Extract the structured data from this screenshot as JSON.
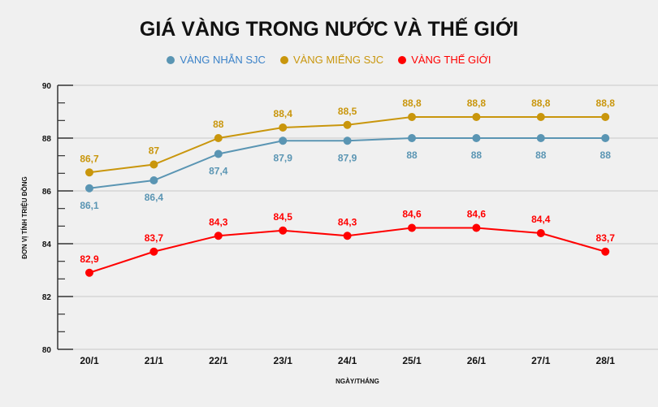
{
  "chart_data": {
    "type": "line",
    "title": "GIÁ VÀNG TRONG NƯỚC VÀ THẾ GIỚI",
    "xlabel": "NGÀY/THÁNG",
    "ylabel": "ĐƠN VỊ TÍNH TRIỆU ĐỒNG",
    "categories": [
      "20/1",
      "21/1",
      "22/1",
      "23/1",
      "24/1",
      "25/1",
      "26/1",
      "27/1",
      "28/1"
    ],
    "ylim": [
      80,
      90
    ],
    "yticks": [
      "80",
      "82",
      "84",
      "86",
      "88",
      "90"
    ],
    "grid": true,
    "legend_position": "top",
    "series": [
      {
        "name": "VÀNG NHẪN SJC",
        "color": "#5a95b3",
        "text_color": "#3b82c8",
        "label_color": "#5a95b3",
        "label_pos": "below",
        "values": [
          86.1,
          86.4,
          87.4,
          87.9,
          87.9,
          88,
          88,
          88,
          88
        ],
        "labels": [
          "86,1",
          "86,4",
          "87,4",
          "87,9",
          "87,9",
          "88",
          "88",
          "88",
          "88"
        ]
      },
      {
        "name": "VÀNG MIẾNG SJC",
        "color": "#c9960c",
        "text_color": "#c9960c",
        "label_color": "#c9960c",
        "label_pos": "above",
        "values": [
          86.7,
          87,
          88,
          88.4,
          88.5,
          88.8,
          88.8,
          88.8,
          88.8
        ],
        "labels": [
          "86,7",
          "87",
          "88",
          "88,4",
          "88,5",
          "88,8",
          "88,8",
          "88,8",
          "88,8"
        ]
      },
      {
        "name": "VÀNG THẾ GIỚI",
        "color": "#ff0000",
        "text_color": "#ff0000",
        "label_color": "#ff0000",
        "label_pos": "above",
        "values": [
          82.9,
          83.7,
          84.3,
          84.5,
          84.3,
          84.6,
          84.6,
          84.4,
          83.7
        ],
        "labels": [
          "82,9",
          "83,7",
          "84,3",
          "84,5",
          "84,3",
          "84,6",
          "84,6",
          "84,4",
          "83,7"
        ]
      }
    ]
  }
}
